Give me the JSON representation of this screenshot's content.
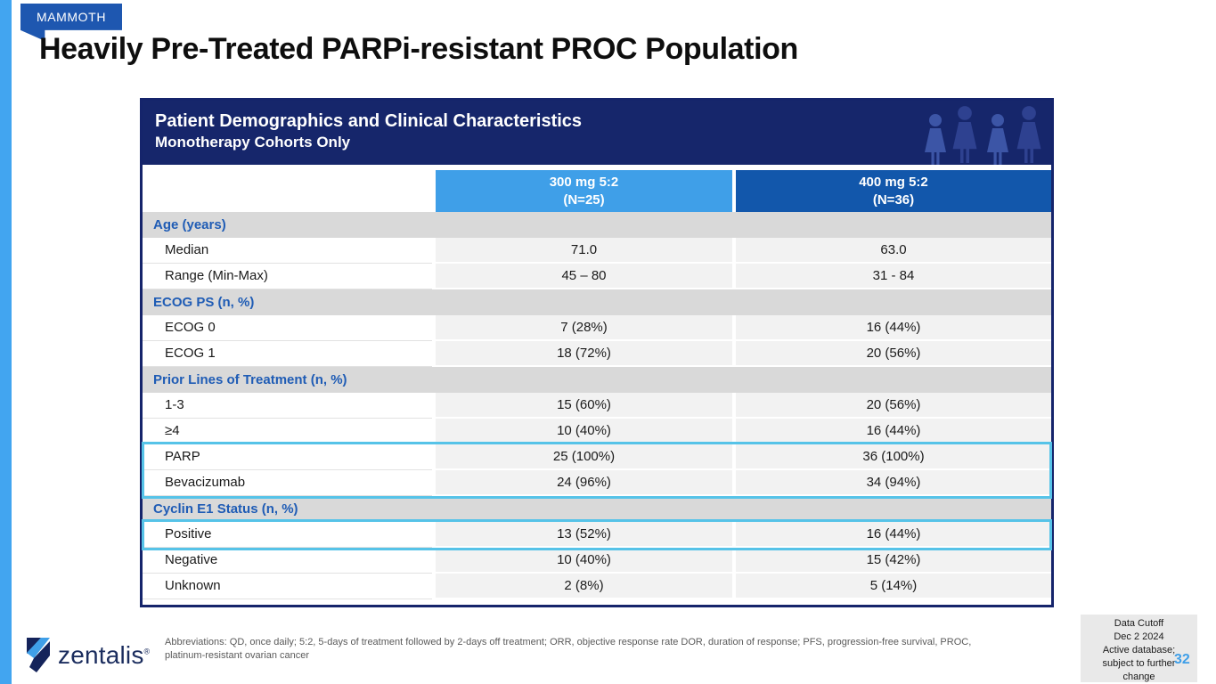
{
  "badge": {
    "label": "MAMMOTH"
  },
  "title": "Heavily Pre-Treated PARPi-resistant PROC Population",
  "table": {
    "header": {
      "title": "Patient Demographics and Clinical Characteristics",
      "subtitle": "Monotherapy Cohorts Only"
    },
    "icons": [
      "patients-group-icon"
    ],
    "columns": [
      {
        "line1": "300 mg 5:2",
        "line2": "(N=25)",
        "color": "#3f9fe8"
      },
      {
        "line1": "400 mg 5:2",
        "line2": "(N=36)",
        "color": "#1257ab"
      }
    ],
    "rows": [
      {
        "type": "section",
        "label": "Age (years)"
      },
      {
        "type": "data",
        "label": "Median",
        "values": [
          "71.0",
          "63.0"
        ]
      },
      {
        "type": "data",
        "label": "Range (Min-Max)",
        "values": [
          "45 – 80",
          "31 - 84"
        ]
      },
      {
        "type": "section",
        "label": "ECOG PS (n, %)"
      },
      {
        "type": "data",
        "label": "ECOG 0",
        "values": [
          "7 (28%)",
          "16 (44%)"
        ]
      },
      {
        "type": "data",
        "label": "ECOG 1",
        "values": [
          "18 (72%)",
          "20 (56%)"
        ]
      },
      {
        "type": "section",
        "label": "Prior Lines of Treatment (n, %)"
      },
      {
        "type": "data",
        "label": "1-3",
        "values": [
          "15 (60%)",
          "20 (56%)"
        ]
      },
      {
        "type": "data",
        "label": "≥4",
        "values": [
          "10 (40%)",
          "16 (44%)"
        ]
      },
      {
        "type": "data",
        "label": "PARP",
        "values": [
          "25 (100%)",
          "36 (100%)"
        ],
        "highlight": "group1"
      },
      {
        "type": "data",
        "label": "Bevacizumab",
        "values": [
          "24 (96%)",
          "34 (94%)"
        ],
        "highlight": "group1"
      },
      {
        "type": "section",
        "label": "Cyclin E1 Status (n, %)"
      },
      {
        "type": "data",
        "label": "Positive",
        "values": [
          "13 (52%)",
          "16 (44%)"
        ],
        "highlight": "group2"
      },
      {
        "type": "data",
        "label": "Negative",
        "values": [
          "10 (40%)",
          "15 (42%)"
        ]
      },
      {
        "type": "data",
        "label": "Unknown",
        "values": [
          "2 (8%)",
          "5 (14%)"
        ]
      }
    ]
  },
  "footer": {
    "logo_text": "zentalis",
    "logo_mark": "®",
    "abbreviations": "Abbreviations: QD, once daily; 5:2, 5-days of treatment followed by 2-days off treatment; ORR, objective response rate DOR, duration of response; PFS, progression-free survival, PROC, platinum-resistant ovarian cancer",
    "data_cutoff_lines": [
      "Data Cutoff",
      "Dec 2 2024",
      "Active database;",
      "subject to further",
      "change"
    ],
    "page_number": "32"
  },
  "colors": {
    "navy_header": "#16266b",
    "table_border": "#15246b",
    "column1_header": "#3f9fe8",
    "column2_header": "#1257ab",
    "section_row_bg": "#d9d9d9",
    "section_row_text": "#1f5cb5",
    "data_cell_bg": "#f2f2f2",
    "highlight_border": "#56c3e8",
    "left_stripe": "#42a5f0",
    "badge_bg": "#1e57b0",
    "page_number": "#3f9fe8",
    "logo_navy": "#1b2d5e",
    "logo_blue": "#3f9fe8"
  }
}
